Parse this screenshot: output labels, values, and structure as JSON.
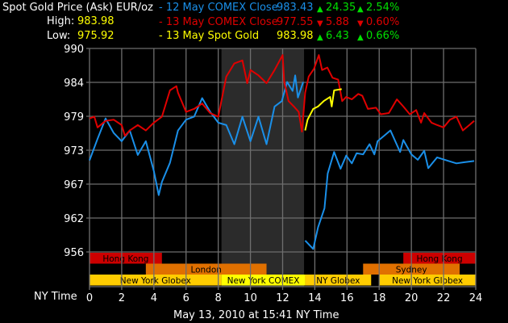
{
  "header": {
    "title": "Spot Gold Price (Ask) EUR/oz",
    "high_label": "High:",
    "high_value": "983.98",
    "low_label": "Low:",
    "low_value": "975.92"
  },
  "legend": [
    {
      "label": "- 12 May COMEX Close",
      "price": "983.43",
      "change": "24.35",
      "change_dir": "up",
      "pct": "2.54%",
      "pct_dir": "up",
      "color": "#1a8fe8"
    },
    {
      "label": "- 13 May COMEX Close",
      "price": "977.55",
      "change": "5.88",
      "change_dir": "down",
      "pct": "0.60%",
      "pct_dir": "down",
      "color": "#e00000"
    },
    {
      "label": "- 13 May Spot Gold",
      "price": "983.98",
      "change": "6.43",
      "change_dir": "up",
      "pct": "0.66%",
      "pct_dir": "up",
      "color": "#ffff00"
    }
  ],
  "colors": {
    "up": "#00e000",
    "down": "#e00000",
    "white": "#ffffff",
    "highlow": "#ffff00",
    "grid": "#6e6e6e",
    "shade": "#2b2b2b"
  },
  "footer": {
    "x_axis_label": "NY Time",
    "timestamp": "May 13, 2010 at 15:41 NY Time"
  },
  "chart_data": {
    "type": "line",
    "xlim": [
      0,
      24
    ],
    "ylim": [
      956,
      990
    ],
    "x_ticks": [
      "0",
      "2",
      "4",
      "6",
      "8",
      "10",
      "12",
      "14",
      "16",
      "18",
      "20",
      "22",
      "24"
    ],
    "y_ticks": [
      "990",
      "984",
      "979",
      "973",
      "967",
      "962",
      "956"
    ],
    "grid": true,
    "shaded_region_hours": [
      8.2,
      13.33
    ],
    "series": [
      {
        "name": "12 May COMEX Close",
        "color": "#1a8fe8",
        "segments": [
          [
            [
              0,
              971.3
            ],
            [
              0.5,
              974.9
            ],
            [
              1,
              978.3
            ],
            [
              1.5,
              975.9
            ],
            [
              2,
              974.5
            ],
            [
              2.5,
              976.3
            ],
            [
              3,
              972.2
            ],
            [
              3.5,
              974.5
            ],
            [
              4,
              969.5
            ],
            [
              4.3,
              965.5
            ],
            [
              4.5,
              967.7
            ],
            [
              5,
              970.9
            ],
            [
              5.5,
              976.3
            ],
            [
              6,
              978.1
            ],
            [
              6.5,
              978.6
            ],
            [
              7,
              981.7
            ],
            [
              7.5,
              979.4
            ],
            [
              8,
              977.6
            ],
            [
              8.5,
              977.2
            ],
            [
              9,
              974.0
            ],
            [
              9.5,
              978.6
            ],
            [
              10,
              974.5
            ],
            [
              10.5,
              978.6
            ],
            [
              11,
              974.0
            ],
            [
              11.5,
              980.3
            ],
            [
              11.95,
              981.2
            ],
            [
              12.28,
              984.4
            ],
            [
              12.62,
              982.9
            ],
            [
              12.78,
              985.5
            ],
            [
              12.95,
              981.8
            ],
            [
              13.28,
              984.4
            ]
          ],
          [
            [
              13.4,
              957.9
            ],
            [
              13.9,
              956.5
            ],
            [
              14.2,
              960.1
            ],
            [
              14.6,
              963.3
            ],
            [
              14.8,
              969.1
            ],
            [
              15.2,
              972.7
            ],
            [
              15.6,
              969.9
            ],
            [
              15.95,
              972.1
            ],
            [
              16.3,
              970.8
            ],
            [
              16.6,
              972.5
            ],
            [
              17.0,
              972.3
            ],
            [
              17.4,
              974.0
            ],
            [
              17.7,
              972.3
            ],
            [
              17.9,
              974.5
            ],
            [
              18.3,
              975.4
            ],
            [
              18.7,
              976.3
            ],
            [
              19.3,
              972.7
            ],
            [
              19.5,
              974.7
            ],
            [
              20.0,
              972.3
            ],
            [
              20.4,
              971.4
            ],
            [
              20.8,
              972.9
            ],
            [
              21.05,
              970.0
            ],
            [
              21.6,
              971.8
            ],
            [
              22.3,
              971.2
            ],
            [
              22.8,
              970.8
            ],
            [
              23.3,
              971.0
            ],
            [
              23.9,
              971.2
            ]
          ]
        ]
      },
      {
        "name": "13 May COMEX Close",
        "color": "#e00000",
        "segments": [
          [
            [
              0,
              978.3
            ],
            [
              0.3,
              978.6
            ],
            [
              0.5,
              976.8
            ],
            [
              1,
              977.9
            ],
            [
              1.5,
              978.1
            ],
            [
              2,
              977.2
            ],
            [
              2.2,
              975.4
            ],
            [
              2.5,
              976.3
            ],
            [
              3,
              977.2
            ],
            [
              3.5,
              976.3
            ],
            [
              4,
              977.6
            ],
            [
              4.5,
              978.6
            ],
            [
              5,
              983.0
            ],
            [
              5.4,
              983.7
            ],
            [
              5.5,
              982.6
            ],
            [
              6,
              979.4
            ],
            [
              6.5,
              979.9
            ],
            [
              7,
              980.8
            ],
            [
              7.5,
              979.2
            ],
            [
              8,
              978.6
            ],
            [
              8.5,
              985.3
            ],
            [
              9,
              987.5
            ],
            [
              9.5,
              988.0
            ],
            [
              9.8,
              984.2
            ],
            [
              10,
              986.4
            ],
            [
              10.5,
              985.5
            ],
            [
              11,
              984.2
            ],
            [
              11.5,
              986.4
            ],
            [
              12,
              988.9
            ],
            [
              12.1,
              984.4
            ],
            [
              12.37,
              981.2
            ],
            [
              12.7,
              980.3
            ],
            [
              13.0,
              979.4
            ],
            [
              13.2,
              976.1
            ],
            [
              13.4,
              982.6
            ],
            [
              13.62,
              985.3
            ],
            [
              13.95,
              986.6
            ],
            [
              14.25,
              988.9
            ],
            [
              14.45,
              986.4
            ],
            [
              14.78,
              986.8
            ],
            [
              15.1,
              985.1
            ],
            [
              15.45,
              984.8
            ],
            [
              15.7,
              981.2
            ],
            [
              15.95,
              981.9
            ],
            [
              16.3,
              981.5
            ],
            [
              16.7,
              982.4
            ],
            [
              16.95,
              982.1
            ],
            [
              17.3,
              979.9
            ],
            [
              17.8,
              980.1
            ],
            [
              18.1,
              979.0
            ],
            [
              18.6,
              979.2
            ],
            [
              19.1,
              981.5
            ],
            [
              19.5,
              980.3
            ],
            [
              19.9,
              979.0
            ],
            [
              20.3,
              979.7
            ],
            [
              20.6,
              977.6
            ],
            [
              20.8,
              979.2
            ],
            [
              21.25,
              977.6
            ],
            [
              21.6,
              977.2
            ],
            [
              22.0,
              976.8
            ],
            [
              22.4,
              978.1
            ],
            [
              22.8,
              978.6
            ],
            [
              23.2,
              976.3
            ],
            [
              23.6,
              977.2
            ],
            [
              23.9,
              977.9
            ]
          ]
        ]
      },
      {
        "name": "13 May Spot Gold",
        "color": "#ffff00",
        "segments": [
          [
            [
              13.4,
              976.3
            ],
            [
              13.55,
              978.1
            ],
            [
              13.9,
              979.9
            ],
            [
              14.2,
              980.3
            ],
            [
              14.55,
              981.2
            ],
            [
              14.95,
              981.9
            ],
            [
              15.05,
              980.3
            ],
            [
              15.2,
              983.0
            ],
            [
              15.67,
              983.2
            ]
          ]
        ]
      }
    ],
    "sessions": [
      {
        "label": "Hong Kong",
        "row": 0,
        "start": 0,
        "end": 4.5,
        "color": "#cc0000"
      },
      {
        "label": "Hong Kong",
        "row": 0,
        "start": 19.5,
        "end": 24,
        "color": "#cc0000"
      },
      {
        "label": "London",
        "row": 1,
        "start": 3.5,
        "end": 11,
        "color": "#e07000"
      },
      {
        "label": "Sydney",
        "row": 1,
        "start": 17,
        "end": 23,
        "color": "#e07000"
      },
      {
        "label": "New York Globex",
        "row": 2,
        "start": 0,
        "end": 8.2,
        "color": "#ffcc00"
      },
      {
        "label": "New York COMEX",
        "row": 2,
        "start": 8.2,
        "end": 13.4,
        "color": "#ffff00"
      },
      {
        "label": "NY Globex",
        "row": 2,
        "start": 13.4,
        "end": 17.5,
        "color": "#ffcc00"
      },
      {
        "label": "New York Globex",
        "row": 2,
        "start": 18,
        "end": 24,
        "color": "#ffcc00"
      }
    ]
  }
}
